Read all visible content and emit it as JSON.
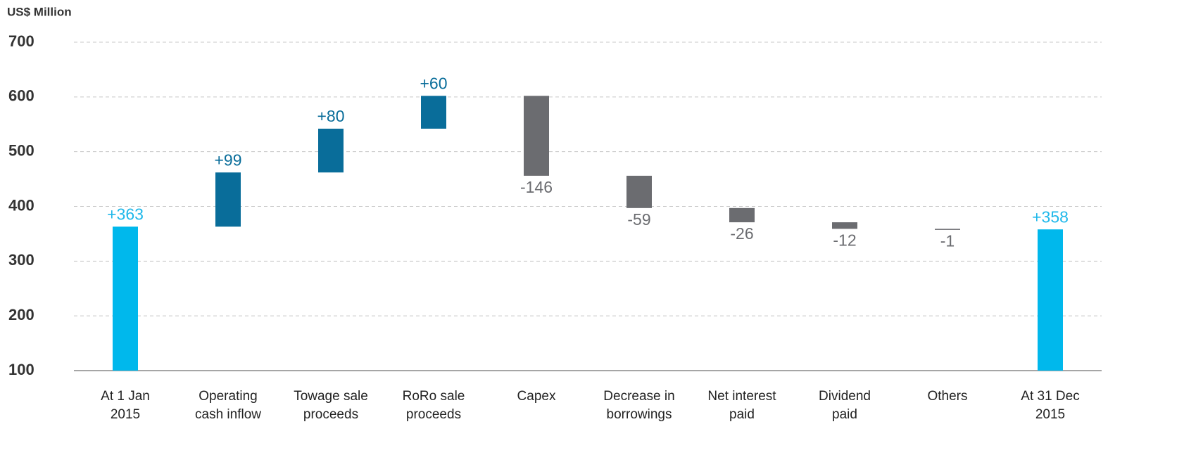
{
  "chart_data": {
    "type": "waterfall",
    "y_axis_label": "US$ Million",
    "categories": [
      "At 1 Jan\n2015",
      "Operating\ncash inflow",
      "Towage sale\nproceeds",
      "RoRo sale\nproceeds",
      "Capex",
      "Decrease in\nborrowings",
      "Net interest\npaid",
      "Dividend\npaid",
      "Others",
      "At 31 Dec\n2015"
    ],
    "values": [
      363,
      99,
      80,
      60,
      -146,
      -59,
      -26,
      -12,
      -1,
      358
    ],
    "value_labels": [
      "+363",
      "+99",
      "+80",
      "+60",
      "-146",
      "-59",
      "-26",
      "-12",
      "-1",
      "+358"
    ],
    "measure": [
      "absolute",
      "relative",
      "relative",
      "relative",
      "relative",
      "relative",
      "relative",
      "relative",
      "relative",
      "absolute"
    ],
    "colors": [
      "#00b8ec",
      "#096d9a",
      "#096d9a",
      "#096d9a",
      "#6b6c70",
      "#6b6c70",
      "#6b6c70",
      "#6b6c70",
      "#6b6c70",
      "#00b8ec"
    ],
    "ylim": [
      100,
      700
    ],
    "yticks": [
      100,
      200,
      300,
      400,
      500,
      600,
      700
    ],
    "grid": true
  }
}
